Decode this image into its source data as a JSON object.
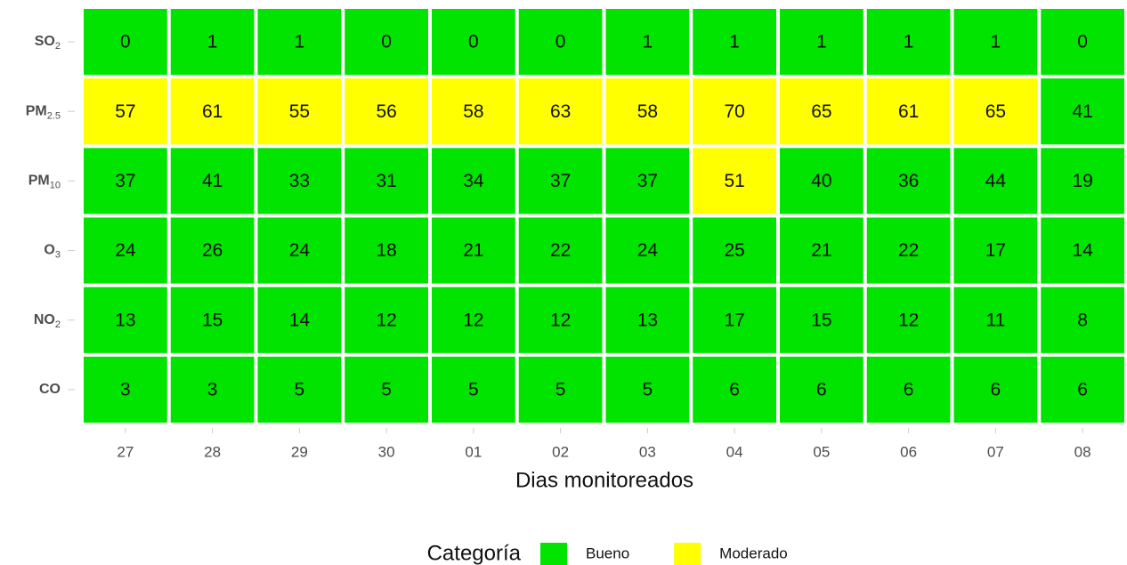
{
  "chart_data": {
    "type": "heatmap",
    "x_label": "Dias monitoreados",
    "x_categories": [
      "27",
      "28",
      "29",
      "30",
      "01",
      "02",
      "03",
      "04",
      "05",
      "06",
      "07",
      "08"
    ],
    "y_categories": [
      {
        "text": "SO",
        "sub": "2"
      },
      {
        "text": "PM",
        "sub": "2.5"
      },
      {
        "text": "PM",
        "sub": "10"
      },
      {
        "text": "O",
        "sub": "3"
      },
      {
        "text": "NO",
        "sub": "2"
      },
      {
        "text": "CO"
      }
    ],
    "values": [
      [
        0,
        1,
        1,
        0,
        0,
        0,
        1,
        1,
        1,
        1,
        1,
        0
      ],
      [
        57,
        61,
        55,
        56,
        58,
        63,
        58,
        70,
        65,
        61,
        65,
        41
      ],
      [
        37,
        41,
        33,
        31,
        34,
        37,
        37,
        51,
        40,
        36,
        44,
        19
      ],
      [
        24,
        26,
        24,
        18,
        21,
        22,
        24,
        25,
        21,
        22,
        17,
        14
      ],
      [
        13,
        15,
        14,
        12,
        12,
        12,
        13,
        17,
        15,
        12,
        11,
        8
      ],
      [
        3,
        3,
        5,
        5,
        5,
        5,
        5,
        6,
        6,
        6,
        6,
        6
      ]
    ],
    "cell_category": [
      [
        0,
        0,
        0,
        0,
        0,
        0,
        0,
        0,
        0,
        0,
        0,
        0
      ],
      [
        1,
        1,
        1,
        1,
        1,
        1,
        1,
        1,
        1,
        1,
        1,
        0
      ],
      [
        0,
        0,
        0,
        0,
        0,
        0,
        0,
        1,
        0,
        0,
        0,
        0
      ],
      [
        0,
        0,
        0,
        0,
        0,
        0,
        0,
        0,
        0,
        0,
        0,
        0
      ],
      [
        0,
        0,
        0,
        0,
        0,
        0,
        0,
        0,
        0,
        0,
        0,
        0
      ],
      [
        0,
        0,
        0,
        0,
        0,
        0,
        0,
        0,
        0,
        0,
        0,
        0
      ]
    ],
    "legend": {
      "title": "Categoría",
      "position": "bottom",
      "entries": [
        {
          "name": "Bueno",
          "color": "#00e400"
        },
        {
          "name": "Moderado",
          "color": "#ffff00"
        }
      ]
    }
  }
}
